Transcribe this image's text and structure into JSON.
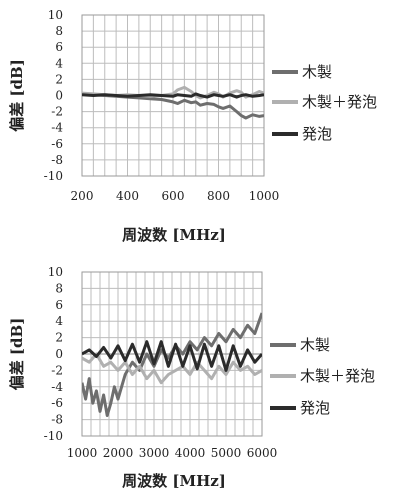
{
  "chart_data": [
    {
      "type": "line",
      "title": "",
      "xlabel": "周波数 [MHz]",
      "ylabel": "偏差 [dB]",
      "xlim": [
        200,
        1000
      ],
      "ylim": [
        -10,
        10
      ],
      "xticks": [
        200,
        400,
        600,
        800,
        1000
      ],
      "yticks": [
        10,
        8,
        6,
        4,
        2,
        0,
        -2,
        -4,
        -6,
        -8,
        -10
      ],
      "grid": true,
      "legend_position": "right",
      "series": [
        {
          "name": "木製",
          "color": "#6e6e6e",
          "x": [
            200,
            250,
            300,
            350,
            400,
            450,
            500,
            550,
            600,
            620,
            650,
            680,
            700,
            720,
            750,
            780,
            800,
            820,
            850,
            880,
            900,
            920,
            950,
            980,
            1000
          ],
          "y": [
            0.2,
            0.1,
            0.0,
            -0.1,
            -0.2,
            -0.3,
            -0.4,
            -0.5,
            -0.8,
            -1.0,
            -0.6,
            -0.9,
            -0.8,
            -1.2,
            -1.0,
            -1.1,
            -1.4,
            -1.6,
            -1.3,
            -2.0,
            -2.5,
            -2.8,
            -2.4,
            -2.6,
            -2.5
          ]
        },
        {
          "name": "木製＋発泡",
          "color": "#b0b0b0",
          "x": [
            200,
            250,
            300,
            350,
            400,
            450,
            500,
            550,
            600,
            620,
            650,
            680,
            700,
            720,
            750,
            780,
            800,
            820,
            850,
            880,
            900,
            920,
            950,
            980,
            1000
          ],
          "y": [
            0.3,
            0.2,
            0.1,
            0.0,
            0.1,
            0.0,
            -0.1,
            0.0,
            0.2,
            0.7,
            1.0,
            0.5,
            0.0,
            -0.3,
            0.0,
            0.4,
            0.2,
            -0.2,
            0.3,
            0.6,
            0.4,
            -0.2,
            0.1,
            0.5,
            0.3
          ]
        },
        {
          "name": "発泡",
          "color": "#2b2b2b",
          "x": [
            200,
            250,
            300,
            350,
            400,
            450,
            500,
            550,
            600,
            620,
            650,
            680,
            700,
            720,
            750,
            780,
            800,
            820,
            850,
            880,
            900,
            920,
            950,
            980,
            1000
          ],
          "y": [
            0.1,
            0.0,
            0.1,
            0.0,
            -0.1,
            0.0,
            0.1,
            0.0,
            -0.1,
            0.1,
            0.0,
            -0.1,
            0.2,
            0.0,
            -0.2,
            0.1,
            0.0,
            -0.1,
            0.1,
            -0.2,
            0.0,
            0.1,
            -0.1,
            0.0,
            0.1
          ]
        }
      ]
    },
    {
      "type": "line",
      "title": "",
      "xlabel": "周波数 [MHz]",
      "ylabel": "偏差 [dB]",
      "xlim": [
        1000,
        6000
      ],
      "ylim": [
        -10,
        10
      ],
      "xticks": [
        1000,
        2000,
        3000,
        4000,
        5000,
        6000
      ],
      "yticks": [
        10,
        8,
        6,
        4,
        2,
        0,
        -2,
        -4,
        -6,
        -8,
        -10
      ],
      "grid": true,
      "legend_position": "right",
      "series": [
        {
          "name": "木製",
          "color": "#6e6e6e",
          "x": [
            1000,
            1100,
            1200,
            1300,
            1400,
            1500,
            1600,
            1700,
            1800,
            1900,
            2000,
            2200,
            2400,
            2600,
            2800,
            3000,
            3200,
            3400,
            3600,
            3800,
            4000,
            4200,
            4400,
            4600,
            4800,
            5000,
            5200,
            5400,
            5600,
            5800,
            6000
          ],
          "y": [
            -3.5,
            -5.5,
            -3.0,
            -6.0,
            -4.5,
            -7.0,
            -5.0,
            -7.5,
            -6.0,
            -4.0,
            -5.5,
            -2.5,
            -1.0,
            -2.0,
            0.0,
            -1.5,
            0.5,
            -0.5,
            1.0,
            0.0,
            1.5,
            0.5,
            2.0,
            1.0,
            2.5,
            1.5,
            3.0,
            2.0,
            3.5,
            2.5,
            5.0
          ]
        },
        {
          "name": "木製＋発泡",
          "color": "#b0b0b0",
          "x": [
            1000,
            1200,
            1400,
            1600,
            1800,
            2000,
            2200,
            2400,
            2600,
            2800,
            3000,
            3200,
            3400,
            3600,
            3800,
            4000,
            4200,
            4400,
            4600,
            4800,
            5000,
            5200,
            5400,
            5600,
            5800,
            6000
          ],
          "y": [
            -0.5,
            -1.0,
            0.0,
            -1.5,
            -1.0,
            -2.0,
            -1.0,
            -2.5,
            -1.5,
            -3.0,
            -2.0,
            -3.5,
            -2.5,
            -2.0,
            -1.5,
            -2.5,
            -1.0,
            -2.0,
            -3.0,
            -1.5,
            -2.5,
            -1.0,
            -2.0,
            -1.5,
            -2.5,
            -2.0
          ]
        },
        {
          "name": "発泡",
          "color": "#2b2b2b",
          "x": [
            1000,
            1200,
            1400,
            1600,
            1800,
            2000,
            2200,
            2400,
            2600,
            2800,
            3000,
            3200,
            3400,
            3600,
            3800,
            4000,
            4200,
            4400,
            4600,
            4800,
            5000,
            5200,
            5400,
            5600,
            5800,
            6000
          ],
          "y": [
            0.0,
            0.5,
            -0.3,
            0.8,
            -0.5,
            1.0,
            -0.8,
            1.2,
            -1.0,
            1.5,
            -1.2,
            1.5,
            -1.5,
            1.2,
            -1.5,
            1.0,
            -1.8,
            1.2,
            -1.5,
            1.0,
            -2.0,
            1.0,
            -1.5,
            0.5,
            -1.0,
            0.0
          ]
        }
      ]
    }
  ]
}
